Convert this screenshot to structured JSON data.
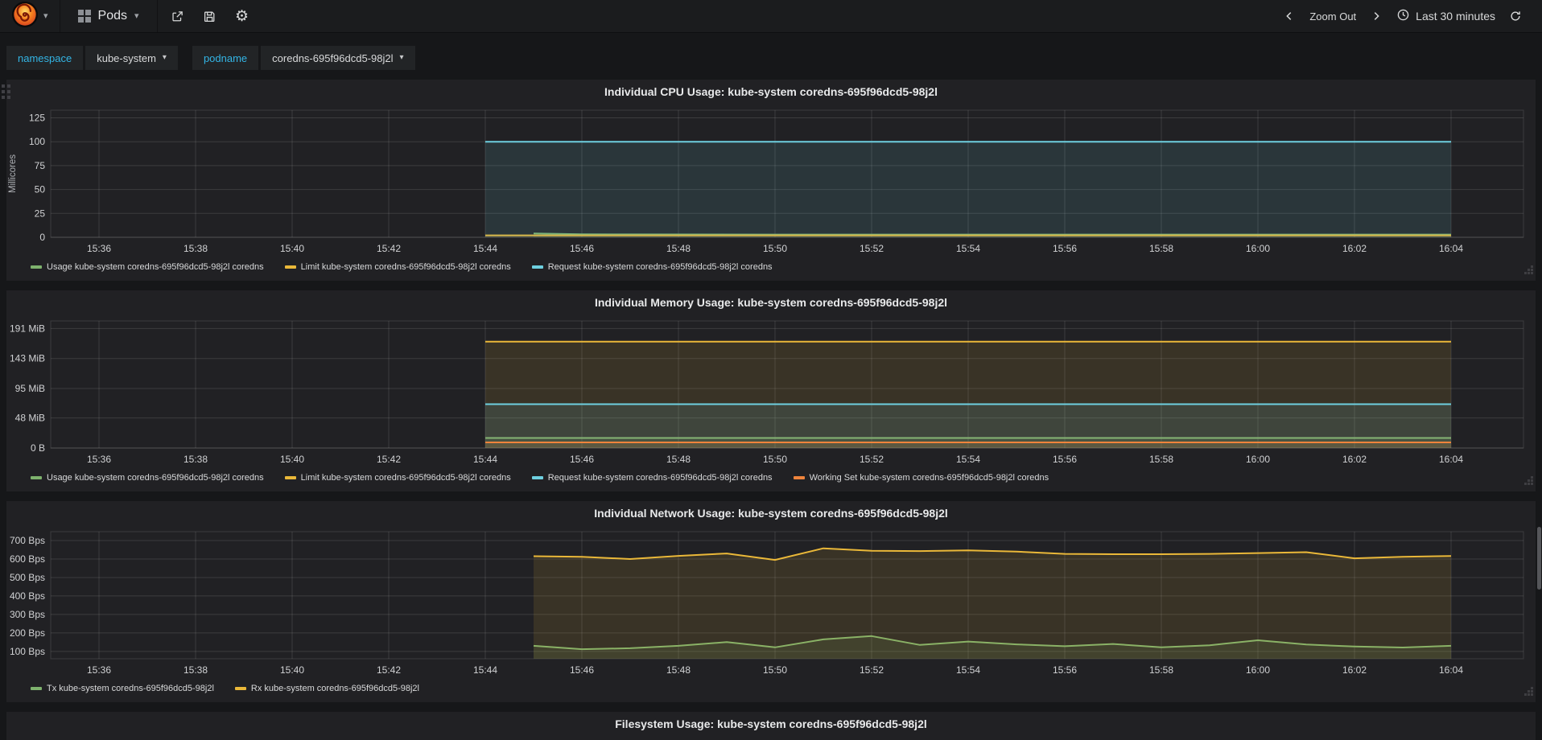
{
  "navbar": {
    "dashboard_title": "Pods",
    "zoom_out_label": "Zoom Out",
    "time_range_label": "Last 30 minutes"
  },
  "submenu": {
    "variables": [
      {
        "label": "namespace",
        "value": "kube-system"
      },
      {
        "label": "podname",
        "value": "coredns-695f96dcd5-98j2l"
      }
    ]
  },
  "icons": {
    "grafana-logo-icon": "orange-spiral",
    "apps-icon": "grid-squares",
    "share-icon": "box-arrow-out",
    "save-icon": "floppy-disk",
    "gear-icon": "⚙",
    "chevron-left-icon": "❮",
    "chevron-right-icon": "❯",
    "clock-icon": "clock-face",
    "refresh-icon": "circular-arrow",
    "caret-down-icon": "▾"
  },
  "colors": {
    "usage_green": "#7EB26D",
    "limit_yellow": "#EAB839",
    "request_cyan": "#6ED0E0",
    "working_set_orange": "#EF843C",
    "variable_label_blue": "#33b5e5",
    "panel_bg": "#212124",
    "page_bg": "#161719"
  },
  "filesystem_panel": {
    "title": "Filesystem Usage: kube-system coredns-695f96dcd5-98j2l"
  },
  "chart_data": [
    {
      "type": "line",
      "title": "Individual CPU Usage: kube-system coredns-695f96dcd5-98j2l",
      "ylabel": "Millicores",
      "ylim": [
        0,
        133
      ],
      "y_ticks": [
        [
          0,
          "0"
        ],
        [
          25,
          "25"
        ],
        [
          50,
          "50"
        ],
        [
          75,
          "75"
        ],
        [
          100,
          "100"
        ],
        [
          125,
          "125"
        ]
      ],
      "xlim": [
        935,
        965.5
      ],
      "x_ticks": [
        [
          936,
          "15:36"
        ],
        [
          938,
          "15:38"
        ],
        [
          940,
          "15:40"
        ],
        [
          942,
          "15:42"
        ],
        [
          944,
          "15:44"
        ],
        [
          946,
          "15:46"
        ],
        [
          948,
          "15:48"
        ],
        [
          950,
          "15:50"
        ],
        [
          952,
          "15:52"
        ],
        [
          954,
          "15:54"
        ],
        [
          956,
          "15:56"
        ],
        [
          958,
          "15:58"
        ],
        [
          960,
          "16:00"
        ],
        [
          962,
          "16:02"
        ],
        [
          964,
          "16:04"
        ]
      ],
      "legend_position": "bottom",
      "grid": true,
      "series": [
        {
          "name": "Usage kube-system coredns-695f96dcd5-98j2l coredns",
          "color": "#7EB26D",
          "points": [
            [
              945,
              4
            ],
            [
              946,
              3.2
            ],
            [
              947,
              3
            ],
            [
              950,
              2.9
            ],
            [
              954,
              2.9
            ],
            [
              958,
              2.9
            ],
            [
              962,
              2.9
            ],
            [
              964,
              2.9
            ]
          ]
        },
        {
          "name": "Limit kube-system coredns-695f96dcd5-98j2l coredns",
          "color": "#EAB839",
          "points": [
            [
              944,
              2
            ],
            [
              964,
              2
            ]
          ]
        },
        {
          "name": "Request kube-system coredns-695f96dcd5-98j2l coredns",
          "color": "#6ED0E0",
          "points": [
            [
              944,
              100
            ],
            [
              964,
              100
            ]
          ]
        }
      ]
    },
    {
      "type": "line",
      "title": "Individual Memory Usage: kube-system coredns-695f96dcd5-98j2l",
      "ylabel": "",
      "ylim": [
        0,
        203
      ],
      "y_ticks": [
        [
          0,
          "0 B"
        ],
        [
          48,
          "48 MiB"
        ],
        [
          95,
          "95 MiB"
        ],
        [
          143,
          "143 MiB"
        ],
        [
          191,
          "191 MiB"
        ]
      ],
      "xlim": [
        935,
        965.5
      ],
      "x_ticks": [
        [
          936,
          "15:36"
        ],
        [
          938,
          "15:38"
        ],
        [
          940,
          "15:40"
        ],
        [
          942,
          "15:42"
        ],
        [
          944,
          "15:44"
        ],
        [
          946,
          "15:46"
        ],
        [
          948,
          "15:48"
        ],
        [
          950,
          "15:50"
        ],
        [
          952,
          "15:52"
        ],
        [
          954,
          "15:54"
        ],
        [
          956,
          "15:56"
        ],
        [
          958,
          "15:58"
        ],
        [
          960,
          "16:00"
        ],
        [
          962,
          "16:02"
        ],
        [
          964,
          "16:04"
        ]
      ],
      "legend_position": "bottom",
      "grid": true,
      "series": [
        {
          "name": "Usage kube-system coredns-695f96dcd5-98j2l coredns",
          "color": "#7EB26D",
          "points": [
            [
              944,
              16
            ],
            [
              964,
              16
            ]
          ]
        },
        {
          "name": "Limit kube-system coredns-695f96dcd5-98j2l coredns",
          "color": "#EAB839",
          "points": [
            [
              944,
              170
            ],
            [
              964,
              170
            ]
          ]
        },
        {
          "name": "Request kube-system coredns-695f96dcd5-98j2l coredns",
          "color": "#6ED0E0",
          "points": [
            [
              944,
              70
            ],
            [
              964,
              70
            ]
          ]
        },
        {
          "name": "Working Set kube-system coredns-695f96dcd5-98j2l coredns",
          "color": "#EF843C",
          "points": [
            [
              944,
              9
            ],
            [
              964,
              9
            ]
          ]
        }
      ]
    },
    {
      "type": "line",
      "title": "Individual Network Usage: kube-system coredns-695f96dcd5-98j2l",
      "ylabel": "",
      "ylim": [
        60,
        748
      ],
      "y_ticks": [
        [
          100,
          "100 Bps"
        ],
        [
          200,
          "200 Bps"
        ],
        [
          300,
          "300 Bps"
        ],
        [
          400,
          "400 Bps"
        ],
        [
          500,
          "500 Bps"
        ],
        [
          600,
          "600 Bps"
        ],
        [
          700,
          "700 Bps"
        ]
      ],
      "xlim": [
        935,
        965.5
      ],
      "x_ticks": [
        [
          936,
          "15:36"
        ],
        [
          938,
          "15:38"
        ],
        [
          940,
          "15:40"
        ],
        [
          942,
          "15:42"
        ],
        [
          944,
          "15:44"
        ],
        [
          946,
          "15:46"
        ],
        [
          948,
          "15:48"
        ],
        [
          950,
          "15:50"
        ],
        [
          952,
          "15:52"
        ],
        [
          954,
          "15:54"
        ],
        [
          956,
          "15:56"
        ],
        [
          958,
          "15:58"
        ],
        [
          960,
          "16:00"
        ],
        [
          962,
          "16:02"
        ],
        [
          964,
          "16:04"
        ]
      ],
      "legend_position": "bottom",
      "grid": true,
      "series": [
        {
          "name": "Tx kube-system coredns-695f96dcd5-98j2l",
          "color": "#7EB26D",
          "points": [
            [
              945,
              130
            ],
            [
              946,
              112
            ],
            [
              947,
              117
            ],
            [
              948,
              130
            ],
            [
              949,
              150
            ],
            [
              950,
              122
            ],
            [
              951,
              165
            ],
            [
              952,
              183
            ],
            [
              953,
              135
            ],
            [
              954,
              153
            ],
            [
              955,
              138
            ],
            [
              956,
              128
            ],
            [
              957,
              140
            ],
            [
              958,
              122
            ],
            [
              959,
              133
            ],
            [
              960,
              160
            ],
            [
              961,
              137
            ],
            [
              962,
              126
            ],
            [
              963,
              121
            ],
            [
              964,
              130
            ]
          ]
        },
        {
          "name": "Rx kube-system coredns-695f96dcd5-98j2l",
          "color": "#EAB839",
          "points": [
            [
              945,
              615
            ],
            [
              946,
              612
            ],
            [
              947,
              600
            ],
            [
              948,
              617
            ],
            [
              949,
              630
            ],
            [
              950,
              595
            ],
            [
              951,
              658
            ],
            [
              952,
              645
            ],
            [
              953,
              643
            ],
            [
              954,
              647
            ],
            [
              955,
              640
            ],
            [
              956,
              628
            ],
            [
              957,
              626
            ],
            [
              958,
              626
            ],
            [
              959,
              628
            ],
            [
              960,
              632
            ],
            [
              961,
              637
            ],
            [
              962,
              604
            ],
            [
              963,
              612
            ],
            [
              964,
              616
            ]
          ]
        }
      ]
    }
  ]
}
